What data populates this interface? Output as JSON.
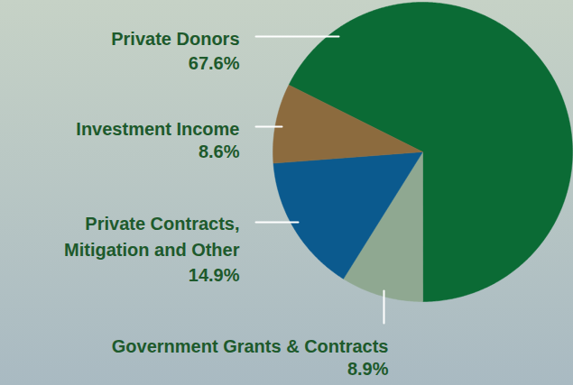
{
  "chart_data": {
    "type": "pie",
    "categories": [
      "Private Donors",
      "Government Grants & Contracts",
      "Private Contracts, Mitigation and Other",
      "Investment Income"
    ],
    "values": [
      67.6,
      8.9,
      14.9,
      8.6
    ],
    "value_labels": [
      "67.6%",
      "8.9%",
      "14.9%",
      "8.6%"
    ],
    "colors": [
      "#0b6b35",
      "#8fa891",
      "#0b5a8e",
      "#8c6b3e"
    ],
    "data_labels": true
  }
}
